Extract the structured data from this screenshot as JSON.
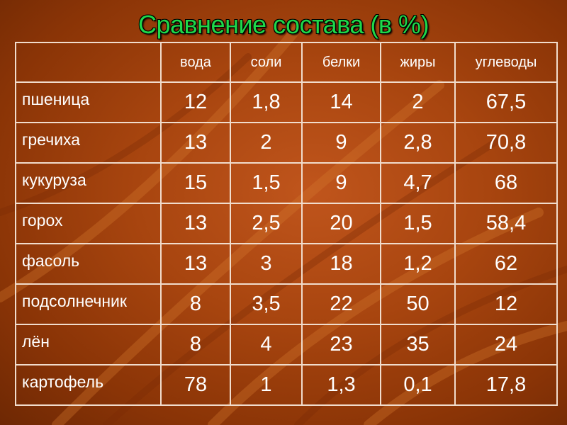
{
  "title": "Сравнение состава (в %)",
  "table": {
    "columns": [
      "",
      "вода",
      "соли",
      "белки",
      "жиры",
      "углеводы"
    ],
    "rows": [
      {
        "name": "пшеница",
        "values": [
          "12",
          "1,8",
          "14",
          "2",
          "67,5"
        ]
      },
      {
        "name": "гречиха",
        "values": [
          "13",
          "2",
          "9",
          "2,8",
          "70,8"
        ]
      },
      {
        "name": "кукуруза",
        "values": [
          "15",
          "1,5",
          "9",
          "4,7",
          "68"
        ]
      },
      {
        "name": "горох",
        "values": [
          "13",
          "2,5",
          "20",
          "1,5",
          "58,4"
        ]
      },
      {
        "name": "фасоль",
        "values": [
          "13",
          "3",
          "18",
          "1,2",
          "62"
        ]
      },
      {
        "name": "подсолнечник",
        "values": [
          "8",
          "3,5",
          "22",
          "50",
          "12"
        ]
      },
      {
        "name": "лён",
        "values": [
          "8",
          "4",
          "23",
          "35",
          "24"
        ]
      },
      {
        "name": "картофель",
        "values": [
          "78",
          "1",
          "1,3",
          "0,1",
          "17,8"
        ]
      }
    ]
  },
  "colors": {
    "background": "#a8450f",
    "title": "#1fd84a",
    "text": "#ffffff",
    "grid": "#f1dccc"
  }
}
